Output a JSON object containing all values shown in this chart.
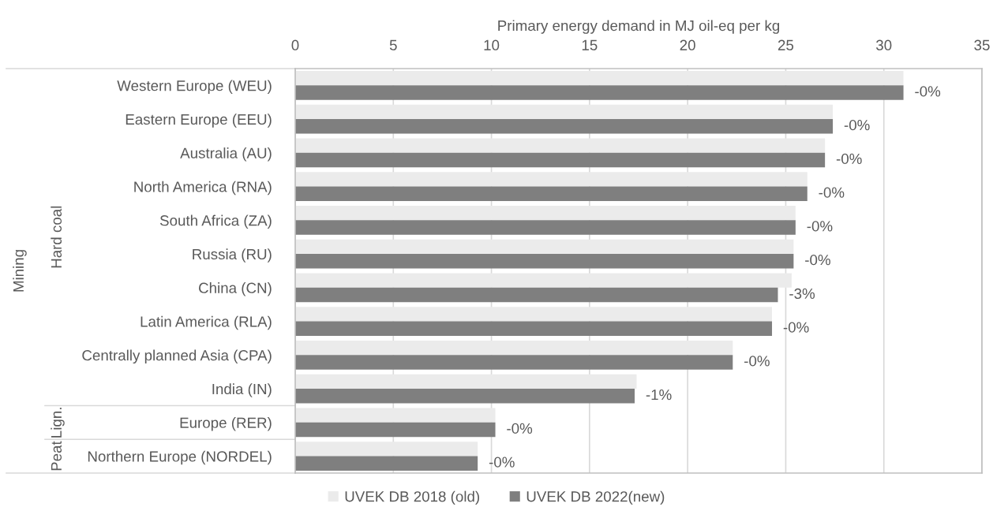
{
  "chart_data": {
    "type": "bar",
    "orientation": "horizontal",
    "xlabel": "Primary energy demand in MJ oil-eq per kg",
    "categories": [
      "Western Europe (WEU)",
      "Eastern Europe (EEU)",
      "Australia (AU)",
      "North America (RNA)",
      "South Africa (ZA)",
      "Russia (RU)",
      "China (CN)",
      "Latin America (RLA)",
      "Centrally planned Asia (CPA)",
      "India (IN)",
      "Europe (RER)",
      "Northern Europe (NORDEL)"
    ],
    "series": [
      {
        "name": "UVEK DB 2018 (old)",
        "color": "#ebebeb",
        "values": [
          31.0,
          27.4,
          27.0,
          26.1,
          25.5,
          25.4,
          25.3,
          24.3,
          22.3,
          17.4,
          10.2,
          9.3
        ]
      },
      {
        "name": "UVEK DB 2022(new)",
        "color": "#7f7f7f",
        "values": [
          31.0,
          27.4,
          27.0,
          26.1,
          25.5,
          25.4,
          24.6,
          24.3,
          22.3,
          17.3,
          10.2,
          9.3
        ]
      }
    ],
    "xlim": [
      0,
      35
    ],
    "xticks": [
      0,
      5,
      10,
      15,
      20,
      25,
      30,
      35
    ],
    "grid": "x",
    "legend": "bottom",
    "annotations": [
      "Mining",
      "Hard coal",
      "Lign.",
      "Peat",
      {
        "text": "-0%",
        "x": 31.0,
        "y": "Western Europe (WEU)"
      },
      {
        "text": "-0%",
        "x": 27.4,
        "y": "Eastern Europe (EEU)"
      },
      {
        "text": "-0%",
        "x": 27.0,
        "y": "Australia (AU)"
      },
      {
        "text": "-0%",
        "x": 26.1,
        "y": "North America (RNA)"
      },
      {
        "text": "-0%",
        "x": 25.5,
        "y": "South Africa (ZA)"
      },
      {
        "text": "-0%",
        "x": 25.4,
        "y": "Russia (RU)"
      },
      {
        "text": "-3%",
        "x": 24.6,
        "y": "China (CN)"
      },
      {
        "text": "-0%",
        "x": 24.3,
        "y": "Latin America (RLA)"
      },
      {
        "text": "-0%",
        "x": 22.3,
        "y": "Centrally planned Asia (CPA)"
      },
      {
        "text": "-1%",
        "x": 17.3,
        "y": "India (IN)"
      },
      {
        "text": "-0%",
        "x": 10.2,
        "y": "Europe (RER)"
      },
      {
        "text": "-0%",
        "x": 9.3,
        "y": "Northern Europe (NORDEL)"
      }
    ]
  }
}
